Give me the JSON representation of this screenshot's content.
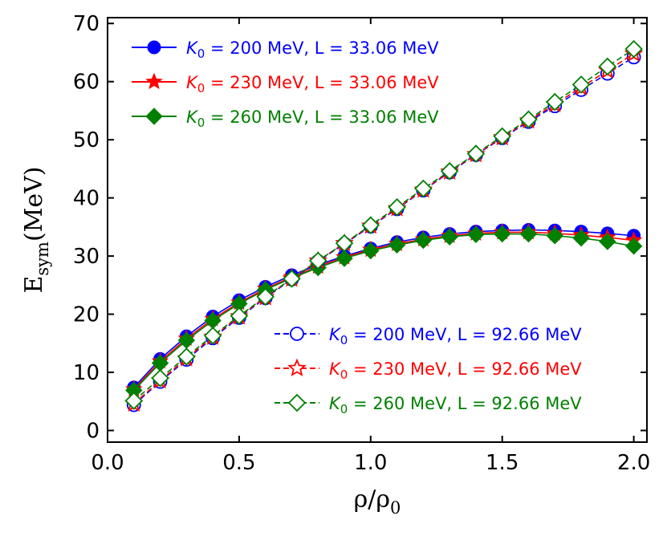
{
  "chart_data": {
    "type": "line",
    "title": "",
    "xlabel": "ρ/ρ0",
    "xlabel_main": "ρ/ρ",
    "xlabel_sub": "0",
    "ylabel": "Esym (MeV)",
    "ylabel_main": "E",
    "ylabel_sub": "sym",
    "ylabel_unit": "(MeV)",
    "xlim": [
      0.0,
      2.05
    ],
    "ylim": [
      -2,
      71
    ],
    "xticks": [
      0.0,
      0.5,
      1.0,
      1.5,
      2.0
    ],
    "xtick_labels": [
      "0.0",
      "0.5",
      "1.0",
      "1.5",
      "2.0"
    ],
    "yticks": [
      0,
      10,
      20,
      30,
      40,
      50,
      60,
      70
    ],
    "ytick_labels": [
      "0",
      "10",
      "20",
      "30",
      "40",
      "50",
      "60",
      "70"
    ],
    "x": [
      0.1,
      0.2,
      0.3,
      0.4,
      0.5,
      0.6,
      0.7,
      0.8,
      0.9,
      1.0,
      1.1,
      1.2,
      1.3,
      1.4,
      1.5,
      1.6,
      1.7,
      1.8,
      1.9,
      2.0
    ],
    "series": [
      {
        "name": "K0 = 200 MeV, L = 33.06 MeV",
        "legend_group": "upper",
        "legend_prefix": "K",
        "legend_sub": "0",
        "legend_rest": " = 200 MeV, L = 33.06 MeV",
        "color": "#0000ff",
        "marker": "circle",
        "filled": true,
        "dashed": false,
        "values": [
          7.4,
          12.3,
          16.2,
          19.6,
          22.4,
          24.7,
          26.7,
          28.5,
          30.0,
          31.3,
          32.4,
          33.2,
          33.8,
          34.2,
          34.4,
          34.5,
          34.4,
          34.2,
          33.9,
          33.5
        ]
      },
      {
        "name": "K0 = 230 MeV, L = 33.06 MeV",
        "legend_group": "upper",
        "legend_prefix": "K",
        "legend_sub": "0",
        "legend_rest": " = 230 MeV, L = 33.06 MeV",
        "color": "#ff0000",
        "marker": "star",
        "filled": true,
        "dashed": false,
        "values": [
          7.1,
          11.9,
          15.8,
          19.2,
          22.0,
          24.4,
          26.4,
          28.2,
          29.8,
          31.1,
          32.1,
          32.9,
          33.5,
          33.9,
          34.1,
          34.1,
          33.9,
          33.6,
          33.2,
          32.7
        ]
      },
      {
        "name": "K0 = 260 MeV, L = 33.06 MeV",
        "legend_group": "upper",
        "legend_prefix": "K",
        "legend_sub": "0",
        "legend_rest": " = 260 MeV, L = 33.06 MeV",
        "color": "#008000",
        "marker": "diamond",
        "filled": true,
        "dashed": false,
        "values": [
          6.9,
          11.6,
          15.5,
          18.9,
          21.8,
          24.2,
          26.2,
          28.0,
          29.6,
          30.9,
          31.9,
          32.7,
          33.3,
          33.7,
          33.8,
          33.8,
          33.5,
          33.1,
          32.5,
          31.7
        ]
      },
      {
        "name": "K0 = 200 MeV, L = 92.66 MeV",
        "legend_group": "lower",
        "legend_prefix": "K",
        "legend_sub": "0",
        "legend_rest": " = 200 MeV, L = 92.66 MeV",
        "color": "#0000ff",
        "marker": "circle",
        "filled": false,
        "dashed": true,
        "values": [
          4.4,
          8.4,
          12.2,
          15.9,
          19.4,
          22.8,
          26.0,
          29.1,
          32.1,
          35.1,
          38.1,
          41.3,
          44.4,
          47.4,
          50.3,
          53.1,
          55.8,
          58.6,
          61.4,
          64.2
        ]
      },
      {
        "name": "K0 = 230 MeV, L = 92.66 MeV",
        "legend_group": "lower",
        "legend_prefix": "K",
        "legend_sub": "0",
        "legend_rest": " = 230 MeV, L = 92.66 MeV",
        "color": "#ff0000",
        "marker": "star",
        "filled": false,
        "dashed": true,
        "values": [
          4.6,
          8.6,
          12.4,
          16.1,
          19.6,
          22.9,
          26.1,
          29.2,
          32.2,
          35.2,
          38.2,
          41.4,
          44.5,
          47.5,
          50.4,
          53.3,
          56.1,
          59.0,
          61.9,
          64.8
        ]
      },
      {
        "name": "K0 = 260 MeV, L = 92.66 MeV",
        "legend_group": "lower",
        "legend_prefix": "K",
        "legend_sub": "0",
        "legend_rest": " = 260 MeV, L = 92.66 MeV",
        "color": "#008000",
        "marker": "diamond",
        "filled": false,
        "dashed": true,
        "values": [
          5.1,
          9.0,
          12.7,
          16.3,
          19.7,
          23.0,
          26.1,
          29.2,
          32.2,
          35.3,
          38.4,
          41.6,
          44.6,
          47.6,
          50.6,
          53.5,
          56.5,
          59.5,
          62.6,
          65.6
        ]
      }
    ]
  }
}
